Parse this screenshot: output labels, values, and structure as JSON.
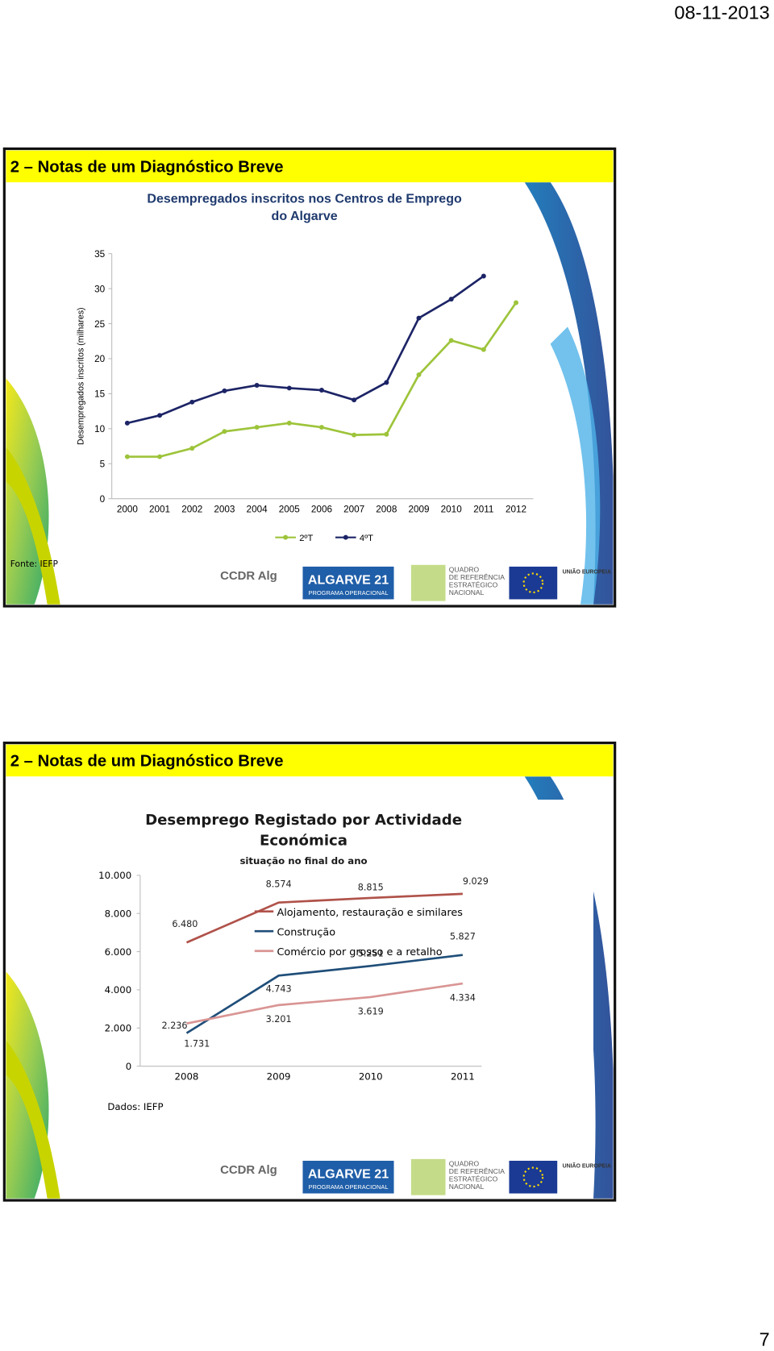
{
  "header": {
    "date": "08-11-2013"
  },
  "slides": [
    {
      "title": "2 – Notas de um Diagnóstico Breve",
      "source": "Fonte: IEFP"
    },
    {
      "title": "2 – Notas de um Diagnóstico Breve",
      "source": "Dados: IEFP"
    }
  ],
  "logos": {
    "ccdr": "CCDR Alg",
    "algarve": "ALGARVE 21",
    "programa": "PROGRAMA OPERACIONAL",
    "qren": [
      "QUADRO",
      "DE REFERÊNCIA",
      "ESTRATÉGICO",
      "NACIONAL"
    ],
    "ue": "UNIÃO EUROPEIA"
  },
  "footer": {
    "page_number": "7"
  },
  "chart_data": [
    {
      "type": "line",
      "title": [
        "Desempregados inscritos nos Centros de Emprego",
        "do Algarve"
      ],
      "y_label": "Desempregados inscritos (milhares)",
      "categories": [
        "2000",
        "2001",
        "2002",
        "2003",
        "2004",
        "2005",
        "2006",
        "2007",
        "2008",
        "2009",
        "2010",
        "2011",
        "2012"
      ],
      "series": [
        {
          "name": "2ºT",
          "color": "#9dc43a",
          "values": [
            6.0,
            6.0,
            7.2,
            9.6,
            10.2,
            10.8,
            10.2,
            9.1,
            9.2,
            17.7,
            22.6,
            21.3,
            28.0
          ]
        },
        {
          "name": "4ºT",
          "color": "#1c2466",
          "values": [
            10.8,
            11.9,
            13.8,
            15.4,
            16.2,
            15.8,
            15.5,
            14.1,
            16.6,
            25.8,
            28.5,
            31.8,
            null
          ]
        }
      ],
      "ylim": [
        0,
        35
      ],
      "yticks": [
        0,
        5,
        10,
        15,
        20,
        25,
        30,
        35
      ],
      "markers": true,
      "legend": "bottom"
    },
    {
      "type": "line",
      "title": [
        "Desemprego Registado por Actividade",
        "Económica"
      ],
      "subtitle": "situação no final do ano",
      "categories": [
        "2008",
        "2009",
        "2010",
        "2011"
      ],
      "series": [
        {
          "name": "Alojamento, restauração e similares",
          "color": "#b0524a",
          "values": [
            6480,
            8574,
            8815,
            9029
          ],
          "value_labels": [
            "6.480",
            "8.574",
            "8.815",
            "9.029"
          ]
        },
        {
          "name": "Construção",
          "color": "#1f4e79",
          "values": [
            1731,
            4743,
            5251,
            5827
          ],
          "value_labels": [
            "1.731",
            "4.743",
            "5.251",
            "5.827"
          ]
        },
        {
          "name": "Comércio por grosso e a retalho",
          "color": "#d99594",
          "values": [
            2236,
            3201,
            3619,
            4334
          ],
          "value_labels": [
            "2.236",
            "3.201",
            "3.619",
            "4.334"
          ]
        }
      ],
      "ylim": [
        0,
        10000
      ],
      "yticks": [
        0,
        {
          "value": 2000,
          "label": "2.000"
        },
        {
          "value": 4000,
          "label": "4.000"
        },
        {
          "value": 6000,
          "label": "6.000"
        },
        {
          "value": 8000,
          "label": "8.000"
        },
        {
          "value": 10000,
          "label": "10.000"
        }
      ],
      "markers": false,
      "legend": "inside"
    }
  ]
}
